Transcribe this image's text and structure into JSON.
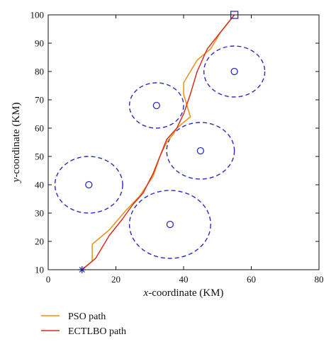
{
  "chart_data": {
    "type": "line",
    "xlabel_var": "x",
    "xlabel_rest": "-coordinate (KM)",
    "ylabel_var": "y",
    "ylabel_rest": "-coordinate (KM)",
    "xlim": [
      0,
      80
    ],
    "ylim": [
      10,
      100
    ],
    "xticks": [
      0,
      20,
      40,
      60,
      80
    ],
    "yticks": [
      10,
      20,
      30,
      40,
      50,
      60,
      70,
      80,
      90,
      100
    ],
    "grid": false,
    "legend_position": "bottom-left, below plot",
    "start": {
      "x": 10,
      "y": 10,
      "marker": "star",
      "color": "#2b2bbf"
    },
    "goal": {
      "x": 55,
      "y": 100,
      "marker": "square",
      "color": "#2b2bbf"
    },
    "threats": [
      {
        "cx": 12,
        "cy": 40,
        "rx": 10,
        "ry": 10
      },
      {
        "cx": 32,
        "cy": 68,
        "rx": 8,
        "ry": 8
      },
      {
        "cx": 45,
        "cy": 52,
        "rx": 10,
        "ry": 10
      },
      {
        "cx": 55,
        "cy": 80,
        "rx": 9,
        "ry": 9
      },
      {
        "cx": 36,
        "cy": 26,
        "rx": 12,
        "ry": 12
      }
    ],
    "series": [
      {
        "name": "PSO path",
        "color": "#e8901a",
        "x": [
          10,
          13,
          13,
          18,
          23,
          27,
          31,
          33,
          35,
          37,
          38,
          42,
          41,
          40,
          40,
          44,
          48,
          51,
          55
        ],
        "y": [
          10,
          13,
          19,
          24,
          31,
          36,
          43,
          50,
          55,
          58,
          60,
          64,
          68,
          72,
          76,
          84,
          88,
          94,
          100
        ]
      },
      {
        "name": "ECTLBO path",
        "color": "#d2301c",
        "x": [
          10,
          14,
          18,
          22,
          25,
          28,
          31,
          33,
          35,
          38,
          40,
          42,
          44,
          47,
          51,
          55
        ],
        "y": [
          10,
          14,
          22,
          28,
          33,
          37,
          44,
          50,
          56,
          60,
          65,
          72,
          80,
          88,
          94,
          100
        ]
      }
    ]
  }
}
